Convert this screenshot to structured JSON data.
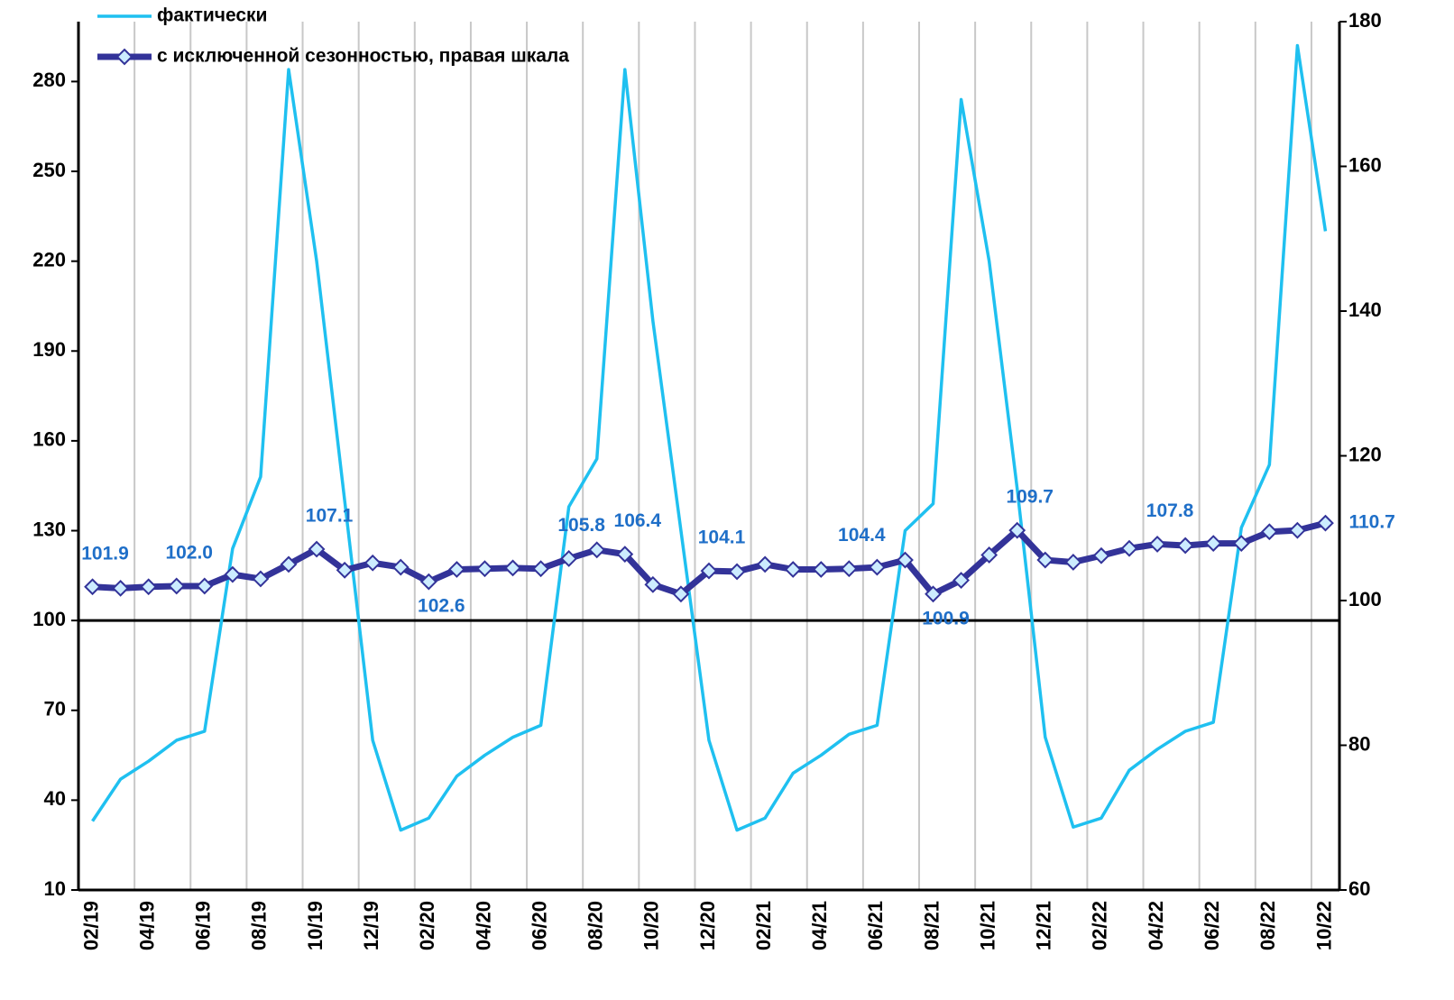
{
  "chart_data": {
    "type": "line",
    "categories": [
      "02/19",
      null,
      "04/19",
      null,
      "06/19",
      null,
      "08/19",
      null,
      "10/19",
      null,
      "12/19",
      null,
      "02/20",
      null,
      "04/20",
      null,
      "06/20",
      null,
      "08/20",
      null,
      "10/20",
      null,
      "12/20",
      null,
      "02/21",
      null,
      "04/21",
      null,
      "06/21",
      null,
      "08/21",
      null,
      "10/21",
      null,
      "12/21",
      null,
      "02/22",
      null,
      "04/22",
      null,
      "06/22",
      null,
      "08/22",
      null,
      "10/22"
    ],
    "series": [
      {
        "name": "фактически",
        "color": "#1fc0f0",
        "values": [
          33,
          47,
          53,
          60,
          63,
          124,
          148,
          284,
          220,
          140,
          60,
          30,
          34,
          48,
          55,
          61,
          65,
          138,
          154,
          284,
          200,
          130,
          60,
          30,
          34,
          49,
          55,
          62,
          65,
          130,
          139,
          274,
          220,
          144,
          61,
          31,
          34,
          50,
          57,
          63,
          66,
          131,
          152,
          292,
          230
        ]
      },
      {
        "name": "с исключенной сезонностью, правая шкала",
        "color": "#333399",
        "axis": "y2",
        "marker": "diamond",
        "marker_fill": "#ccecff",
        "values": [
          101.9,
          101.7,
          101.9,
          102.0,
          102.0,
          103.6,
          103.0,
          105.0,
          107.1,
          104.2,
          105.2,
          104.6,
          102.6,
          104.3,
          104.4,
          104.5,
          104.4,
          105.8,
          107.0,
          106.4,
          102.2,
          100.9,
          104.1,
          104.0,
          105.0,
          104.3,
          104.3,
          104.4,
          104.6,
          105.6,
          100.9,
          102.8,
          106.3,
          109.7,
          105.6,
          105.3,
          106.2,
          107.2,
          107.8,
          107.6,
          107.9,
          107.9,
          109.5,
          109.7,
          110.7
        ],
        "value_labels": [
          "101.9",
          null,
          null,
          "102.0",
          null,
          null,
          null,
          null,
          "107.1",
          null,
          null,
          null,
          "102.6",
          null,
          null,
          null,
          null,
          "105.8",
          null,
          "106.4",
          null,
          null,
          "104.1",
          null,
          null,
          null,
          null,
          "104.4",
          null,
          null,
          "100.9",
          null,
          null,
          "109.7",
          null,
          null,
          null,
          null,
          "107.8",
          null,
          null,
          null,
          null,
          null,
          "110.7"
        ]
      }
    ],
    "ylim": [
      10,
      300
    ],
    "yticks": [
      10,
      40,
      70,
      100,
      130,
      160,
      190,
      220,
      250,
      280
    ],
    "y2lim": [
      60,
      180
    ],
    "y2ticks": [
      60,
      80,
      100,
      120,
      140,
      160,
      180
    ],
    "hline": 100,
    "grid": "x",
    "legend": "top-left",
    "value_label_color": "#1f6fc8"
  }
}
